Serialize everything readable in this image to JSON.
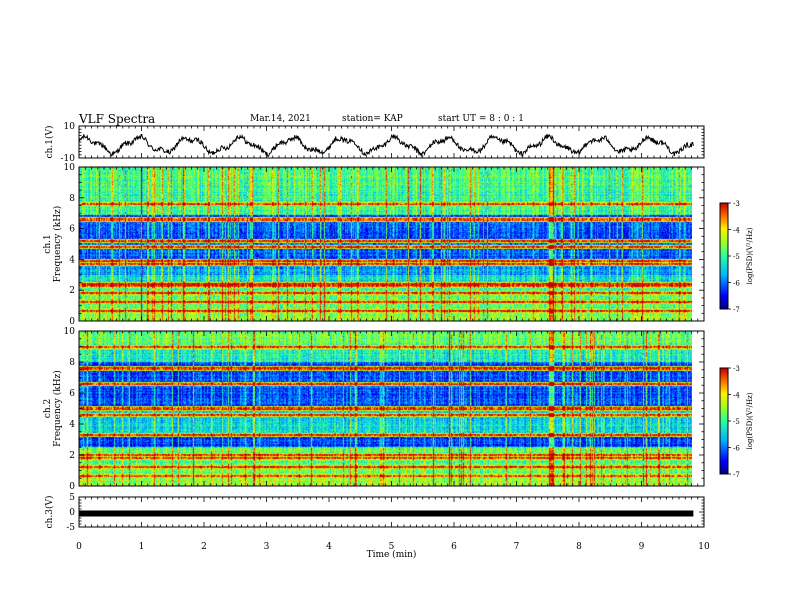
{
  "header": {
    "title": "VLF Spectra",
    "date": "Mar.14, 2021",
    "station": "station= KAP",
    "start_time": "start  UT =  8 : 0  : 1"
  },
  "chart_data": [
    {
      "type": "line",
      "ylabel": "ch.1(V)",
      "ylim": [
        -10,
        10
      ],
      "yticks": [
        10,
        -10
      ],
      "xlim": [
        0,
        10
      ],
      "grid": false,
      "note_color": "#000000"
    },
    {
      "type": "heatmap",
      "ylabel_top": "ch.1",
      "ylabel": "Frequency (kHz)",
      "ylim": [
        0,
        10
      ],
      "yticks": [
        0,
        2,
        4,
        6,
        8,
        10
      ],
      "xlim": [
        0,
        10
      ],
      "colorbar": {
        "label": "log(PSD)(V²/Hz)",
        "ticks": [
          -3,
          -4,
          -5,
          -6,
          -7
        ],
        "range": [
          -7,
          -3
        ]
      },
      "persistent_lines_khz": [
        0.6,
        1.2,
        1.8,
        2.25,
        2.4,
        3.7,
        3.9,
        4.8,
        5.2,
        6.6,
        7.6
      ]
    },
    {
      "type": "heatmap",
      "ylabel_top": "ch.2",
      "ylabel": "Frequency (kHz)",
      "ylim": [
        0,
        10
      ],
      "yticks": [
        0,
        2,
        4,
        6,
        8,
        10
      ],
      "xlim": [
        0,
        10
      ],
      "colorbar": {
        "label": "log(PSD)(V²/Hz)",
        "ticks": [
          -3,
          -4,
          -5,
          -6,
          -7
        ],
        "range": [
          -7,
          -3
        ]
      },
      "persistent_lines_khz": [
        0.6,
        1.2,
        1.8,
        2.0,
        3.3,
        4.6,
        5.0,
        6.6,
        7.6,
        9.0
      ]
    },
    {
      "type": "line",
      "ylabel": "ch.3(V)",
      "ylim": [
        -5,
        5
      ],
      "yticks": [
        5,
        0,
        -5
      ],
      "xlim": [
        0,
        10
      ],
      "constant_value": -0.5
    }
  ],
  "xaxis": {
    "label": "Time (min)",
    "ticks": [
      0,
      1,
      2,
      3,
      4,
      5,
      6,
      7,
      8,
      9,
      10
    ],
    "data_end": 9.83
  }
}
